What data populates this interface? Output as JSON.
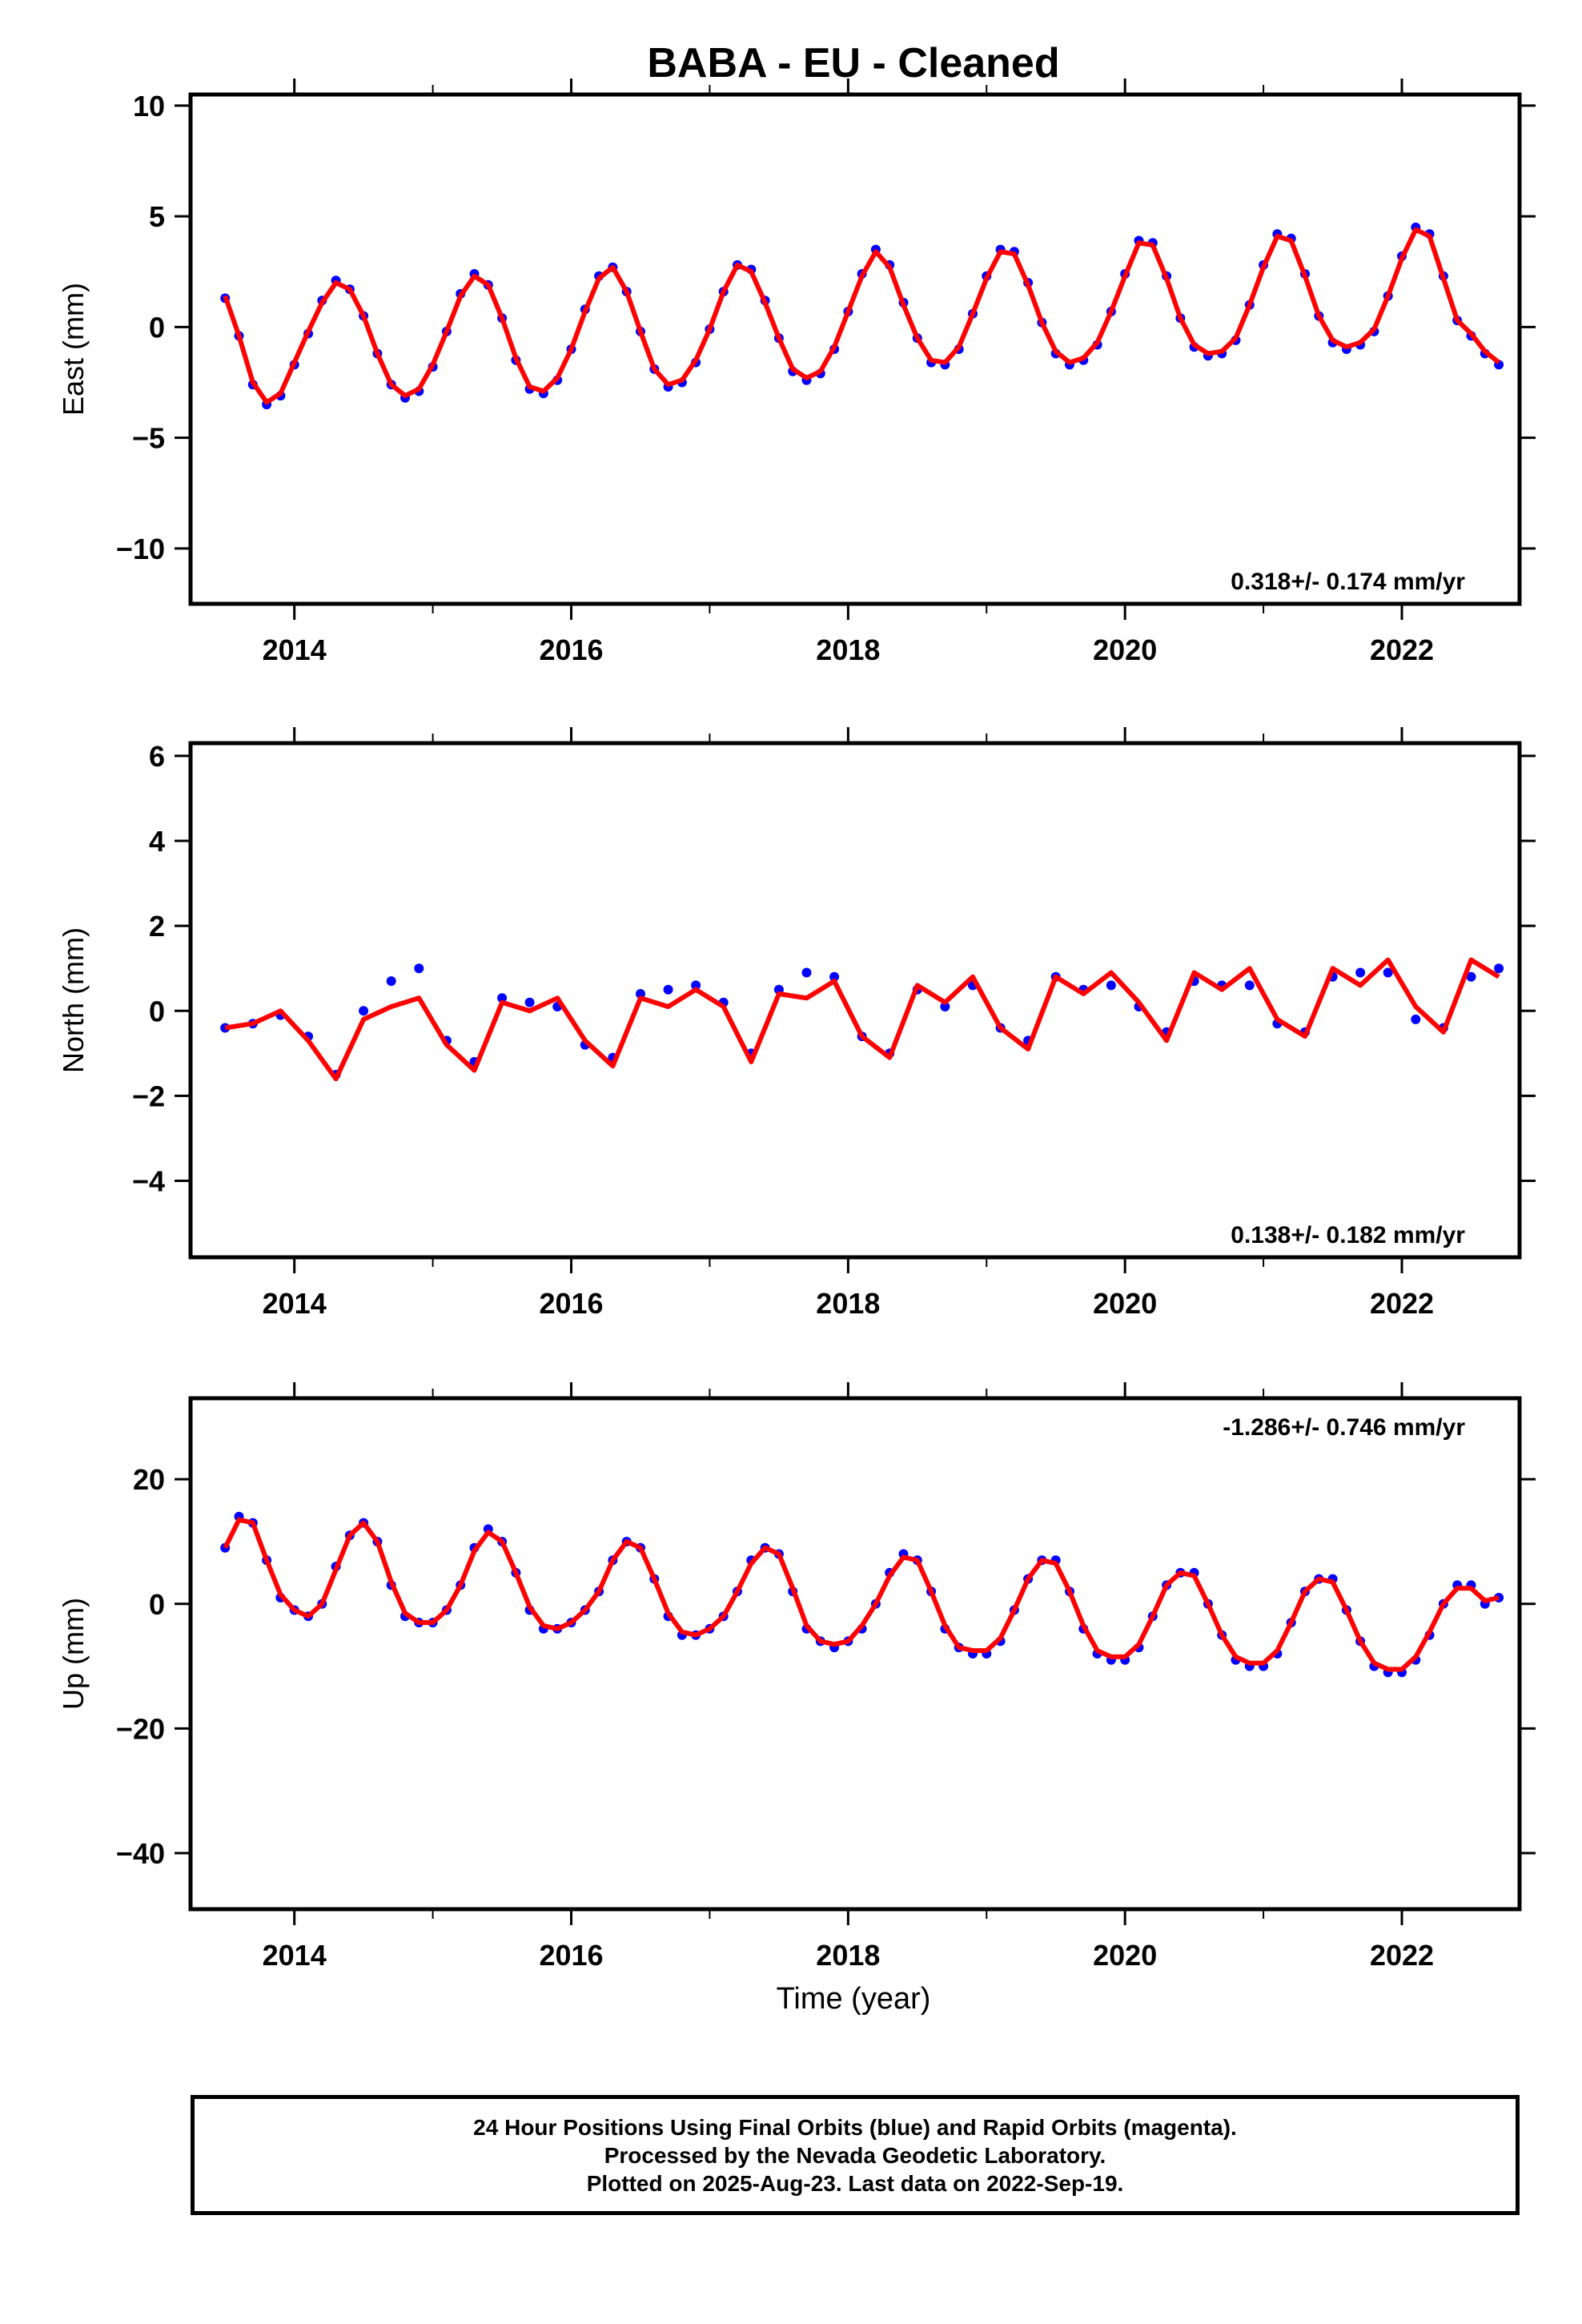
{
  "title": "BABA  - EU - Cleaned",
  "xlabel": "Time (year)",
  "colors": {
    "points": "#0000ff",
    "model": "#ff0000",
    "axes": "#000000"
  },
  "caption": [
    "24 Hour Positions Using Final Orbits (blue) and Rapid Orbits (magenta).",
    "Processed by the Nevada Geodetic Laboratory.",
    "Plotted on 2025-Aug-23. Last data on 2022-Sep-19."
  ],
  "chart_data": [
    {
      "type": "scatter",
      "ylabel": "East (mm)",
      "rate_label": "0.318+/- 0.174 mm/yr",
      "xlim": [
        2013.25,
        2022.85
      ],
      "ylim": [
        -12.5,
        10.5
      ],
      "xticks": [
        2014,
        2016,
        2018,
        2020,
        2022
      ],
      "yticks": [
        -10,
        -5,
        0,
        5,
        10
      ],
      "series": [
        {
          "kind": "daily-positions",
          "x": [
            2013.5,
            2013.6,
            2013.7,
            2013.8,
            2013.9,
            2014.0,
            2014.1,
            2014.2,
            2014.3,
            2014.4,
            2014.5,
            2014.6,
            2014.7,
            2014.8,
            2014.9,
            2015.0,
            2015.1,
            2015.2,
            2015.3,
            2015.4,
            2015.5,
            2015.6,
            2015.7,
            2015.8,
            2015.9,
            2016.0,
            2016.1,
            2016.2,
            2016.3,
            2016.4,
            2016.5,
            2016.6,
            2016.7,
            2016.8,
            2016.9,
            2017.0,
            2017.1,
            2017.2,
            2017.3,
            2017.4,
            2017.5,
            2017.6,
            2017.7,
            2017.8,
            2017.9,
            2018.0,
            2018.1,
            2018.2,
            2018.3,
            2018.4,
            2018.5,
            2018.6,
            2018.7,
            2018.8,
            2018.9,
            2019.0,
            2019.1,
            2019.2,
            2019.3,
            2019.4,
            2019.5,
            2019.6,
            2019.7,
            2019.8,
            2019.9,
            2020.0,
            2020.1,
            2020.2,
            2020.3,
            2020.4,
            2020.5,
            2020.6,
            2020.7,
            2020.8,
            2020.9,
            2021.0,
            2021.1,
            2021.2,
            2021.3,
            2021.4,
            2021.5,
            2021.6,
            2021.7,
            2021.8,
            2021.9,
            2022.0,
            2022.1,
            2022.2,
            2022.3,
            2022.4,
            2022.5,
            2022.6,
            2022.7
          ],
          "y": [
            1.3,
            -0.4,
            -2.6,
            -3.5,
            -3.1,
            -1.7,
            -0.3,
            1.2,
            2.1,
            1.7,
            0.5,
            -1.2,
            -2.6,
            -3.2,
            -2.9,
            -1.8,
            -0.2,
            1.5,
            2.4,
            1.9,
            0.4,
            -1.5,
            -2.8,
            -3.0,
            -2.4,
            -1.0,
            0.8,
            2.3,
            2.7,
            1.6,
            -0.2,
            -1.9,
            -2.7,
            -2.5,
            -1.6,
            -0.1,
            1.6,
            2.8,
            2.6,
            1.2,
            -0.5,
            -2.0,
            -2.4,
            -2.1,
            -1.0,
            0.7,
            2.4,
            3.5,
            2.8,
            1.1,
            -0.5,
            -1.6,
            -1.7,
            -1.0,
            0.6,
            2.3,
            3.5,
            3.4,
            2.0,
            0.2,
            -1.2,
            -1.7,
            -1.5,
            -0.8,
            0.7,
            2.4,
            3.9,
            3.8,
            2.3,
            0.4,
            -0.9,
            -1.3,
            -1.2,
            -0.6,
            1.0,
            2.8,
            4.2,
            4.0,
            2.4,
            0.5,
            -0.7,
            -1.0,
            -0.8,
            -0.2,
            1.4,
            3.2,
            4.5,
            4.2,
            2.3,
            0.3,
            -0.4,
            -1.2,
            -1.7
          ]
        },
        {
          "kind": "model-fit",
          "x": [
            2013.5,
            2013.6,
            2013.7,
            2013.8,
            2013.9,
            2014.0,
            2014.1,
            2014.2,
            2014.3,
            2014.4,
            2014.5,
            2014.6,
            2014.7,
            2014.8,
            2014.9,
            2015.0,
            2015.1,
            2015.2,
            2015.3,
            2015.4,
            2015.5,
            2015.6,
            2015.7,
            2015.8,
            2015.9,
            2016.0,
            2016.1,
            2016.2,
            2016.3,
            2016.4,
            2016.5,
            2016.6,
            2016.7,
            2016.8,
            2016.9,
            2017.0,
            2017.1,
            2017.2,
            2017.3,
            2017.4,
            2017.5,
            2017.6,
            2017.7,
            2017.8,
            2017.9,
            2018.0,
            2018.1,
            2018.2,
            2018.3,
            2018.4,
            2018.5,
            2018.6,
            2018.7,
            2018.8,
            2018.9,
            2019.0,
            2019.1,
            2019.2,
            2019.3,
            2019.4,
            2019.5,
            2019.6,
            2019.7,
            2019.8,
            2019.9,
            2020.0,
            2020.1,
            2020.2,
            2020.3,
            2020.4,
            2020.5,
            2020.6,
            2020.7,
            2020.8,
            2020.9,
            2021.0,
            2021.1,
            2021.2,
            2021.3,
            2021.4,
            2021.5,
            2021.6,
            2021.7,
            2021.8,
            2021.9,
            2022.0,
            2022.1,
            2022.2,
            2022.3,
            2022.4,
            2022.5,
            2022.6,
            2022.7
          ],
          "y": [
            1.4,
            -0.4,
            -2.5,
            -3.4,
            -3.0,
            -1.6,
            -0.2,
            1.1,
            2.0,
            1.7,
            0.5,
            -1.2,
            -2.6,
            -3.1,
            -2.8,
            -1.7,
            -0.2,
            1.4,
            2.3,
            1.9,
            0.4,
            -1.4,
            -2.7,
            -2.9,
            -2.3,
            -1.0,
            0.7,
            2.2,
            2.7,
            1.6,
            -0.2,
            -1.9,
            -2.6,
            -2.4,
            -1.5,
            -0.1,
            1.6,
            2.8,
            2.5,
            1.1,
            -0.5,
            -1.9,
            -2.3,
            -2.0,
            -0.9,
            0.7,
            2.3,
            3.4,
            2.7,
            1.0,
            -0.5,
            -1.5,
            -1.6,
            -0.9,
            0.6,
            2.2,
            3.4,
            3.3,
            1.9,
            0.2,
            -1.1,
            -1.6,
            -1.4,
            -0.7,
            0.7,
            2.3,
            3.8,
            3.7,
            2.2,
            0.4,
            -0.8,
            -1.2,
            -1.1,
            -0.5,
            1.0,
            2.7,
            4.1,
            3.9,
            2.3,
            0.5,
            -0.6,
            -0.9,
            -0.7,
            -0.1,
            1.4,
            3.1,
            4.4,
            4.1,
            2.2,
            0.3,
            -0.3,
            -1.1,
            -1.6
          ]
        }
      ]
    },
    {
      "type": "scatter",
      "ylabel": "North (mm)",
      "rate_label": "0.138+/- 0.182 mm/yr",
      "xlim": [
        2013.25,
        2022.85
      ],
      "ylim": [
        -5.8,
        6.3
      ],
      "xticks": [
        2014,
        2016,
        2018,
        2020,
        2022
      ],
      "yticks": [
        -4,
        -2,
        0,
        2,
        4,
        6
      ],
      "series": [
        {
          "kind": "daily-positions",
          "x": [
            2013.5,
            2013.7,
            2013.9,
            2014.1,
            2014.3,
            2014.5,
            2014.7,
            2014.9,
            2015.1,
            2015.3,
            2015.5,
            2015.7,
            2015.9,
            2016.1,
            2016.3,
            2016.5,
            2016.7,
            2016.9,
            2017.1,
            2017.3,
            2017.5,
            2017.7,
            2017.9,
            2018.1,
            2018.3,
            2018.5,
            2018.7,
            2018.9,
            2019.1,
            2019.3,
            2019.5,
            2019.7,
            2019.9,
            2020.1,
            2020.3,
            2020.5,
            2020.7,
            2020.9,
            2021.1,
            2021.3,
            2021.5,
            2021.7,
            2021.9,
            2022.1,
            2022.3,
            2022.5,
            2022.7
          ],
          "y": [
            -0.4,
            -0.3,
            -0.1,
            -0.6,
            -1.5,
            0.0,
            0.7,
            1.0,
            -0.7,
            -1.2,
            0.3,
            0.2,
            0.1,
            -0.8,
            -1.1,
            0.4,
            0.5,
            0.6,
            0.2,
            -1.0,
            0.5,
            0.9,
            0.8,
            -0.6,
            -1.0,
            0.5,
            0.1,
            0.6,
            -0.4,
            -0.7,
            0.8,
            0.5,
            0.6,
            0.1,
            -0.5,
            0.7,
            0.6,
            0.6,
            -0.3,
            -0.5,
            0.8,
            0.9,
            0.9,
            -0.2,
            -0.4,
            0.8,
            1.0
          ]
        },
        {
          "kind": "model-fit",
          "x": [
            2013.5,
            2013.7,
            2013.9,
            2014.1,
            2014.3,
            2014.5,
            2014.7,
            2014.9,
            2015.1,
            2015.3,
            2015.5,
            2015.7,
            2015.9,
            2016.1,
            2016.3,
            2016.5,
            2016.7,
            2016.9,
            2017.1,
            2017.3,
            2017.5,
            2017.7,
            2017.9,
            2018.1,
            2018.3,
            2018.5,
            2018.7,
            2018.9,
            2019.1,
            2019.3,
            2019.5,
            2019.7,
            2019.9,
            2020.1,
            2020.3,
            2020.5,
            2020.7,
            2020.9,
            2021.1,
            2021.3,
            2021.5,
            2021.7,
            2021.9,
            2022.1,
            2022.3,
            2022.5,
            2022.7
          ],
          "y": [
            -0.4,
            -0.3,
            0.0,
            -0.7,
            -1.6,
            -0.2,
            0.1,
            0.3,
            -0.8,
            -1.4,
            0.2,
            0.0,
            0.3,
            -0.7,
            -1.3,
            0.3,
            0.1,
            0.5,
            0.1,
            -1.2,
            0.4,
            0.3,
            0.7,
            -0.6,
            -1.1,
            0.6,
            0.2,
            0.8,
            -0.4,
            -0.9,
            0.8,
            0.4,
            0.9,
            0.2,
            -0.7,
            0.9,
            0.5,
            1.0,
            -0.2,
            -0.6,
            1.0,
            0.6,
            1.2,
            0.1,
            -0.5,
            1.2,
            0.8
          ]
        }
      ]
    },
    {
      "type": "scatter",
      "ylabel": "Up (mm)",
      "rate_label": "-1.286+/- 0.746 mm/yr",
      "xlim": [
        2013.25,
        2022.85
      ],
      "ylim": [
        -49,
        33
      ],
      "xticks": [
        2014,
        2016,
        2018,
        2020,
        2022
      ],
      "yticks": [
        -40,
        -20,
        0,
        20
      ],
      "series": [
        {
          "kind": "daily-positions",
          "x": [
            2013.5,
            2013.6,
            2013.7,
            2013.8,
            2013.9,
            2014.0,
            2014.1,
            2014.2,
            2014.3,
            2014.4,
            2014.5,
            2014.6,
            2014.7,
            2014.8,
            2014.9,
            2015.0,
            2015.1,
            2015.2,
            2015.3,
            2015.4,
            2015.5,
            2015.6,
            2015.7,
            2015.8,
            2015.9,
            2016.0,
            2016.1,
            2016.2,
            2016.3,
            2016.4,
            2016.5,
            2016.6,
            2016.7,
            2016.8,
            2016.9,
            2017.0,
            2017.1,
            2017.2,
            2017.3,
            2017.4,
            2017.5,
            2017.6,
            2017.7,
            2017.8,
            2017.9,
            2018.0,
            2018.1,
            2018.2,
            2018.3,
            2018.4,
            2018.5,
            2018.6,
            2018.7,
            2018.8,
            2018.9,
            2019.0,
            2019.1,
            2019.2,
            2019.3,
            2019.4,
            2019.5,
            2019.6,
            2019.7,
            2019.8,
            2019.9,
            2020.0,
            2020.1,
            2020.2,
            2020.3,
            2020.4,
            2020.5,
            2020.6,
            2020.7,
            2020.8,
            2020.9,
            2021.0,
            2021.1,
            2021.2,
            2021.3,
            2021.4,
            2021.5,
            2021.6,
            2021.7,
            2021.8,
            2021.9,
            2022.0,
            2022.1,
            2022.2,
            2022.3,
            2022.4,
            2022.5,
            2022.6,
            2022.7
          ],
          "y": [
            9,
            14,
            13,
            7,
            1,
            -1,
            -2,
            0,
            6,
            11,
            13,
            10,
            3,
            -2,
            -3,
            -3,
            -1,
            3,
            9,
            12,
            10,
            5,
            -1,
            -4,
            -4,
            -3,
            -1,
            2,
            7,
            10,
            9,
            4,
            -2,
            -5,
            -5,
            -4,
            -2,
            2,
            7,
            9,
            8,
            2,
            -4,
            -6,
            -7,
            -6,
            -4,
            0,
            5,
            8,
            7,
            2,
            -4,
            -7,
            -8,
            -8,
            -6,
            -1,
            4,
            7,
            7,
            2,
            -4,
            -8,
            -9,
            -9,
            -7,
            -2,
            3,
            5,
            5,
            0,
            -5,
            -9,
            -10,
            -10,
            -8,
            -3,
            2,
            4,
            4,
            -1,
            -6,
            -10,
            -11,
            -11,
            -9,
            -5,
            0,
            3,
            3,
            0,
            1
          ]
        },
        {
          "kind": "model-fit",
          "x": [
            2013.5,
            2013.6,
            2013.7,
            2013.8,
            2013.9,
            2014.0,
            2014.1,
            2014.2,
            2014.3,
            2014.4,
            2014.5,
            2014.6,
            2014.7,
            2014.8,
            2014.9,
            2015.0,
            2015.1,
            2015.2,
            2015.3,
            2015.4,
            2015.5,
            2015.6,
            2015.7,
            2015.8,
            2015.9,
            2016.0,
            2016.1,
            2016.2,
            2016.3,
            2016.4,
            2016.5,
            2016.6,
            2016.7,
            2016.8,
            2016.9,
            2017.0,
            2017.1,
            2017.2,
            2017.3,
            2017.4,
            2017.5,
            2017.6,
            2017.7,
            2017.8,
            2017.9,
            2018.0,
            2018.1,
            2018.2,
            2018.3,
            2018.4,
            2018.5,
            2018.6,
            2018.7,
            2018.8,
            2018.9,
            2019.0,
            2019.1,
            2019.2,
            2019.3,
            2019.4,
            2019.5,
            2019.6,
            2019.7,
            2019.8,
            2019.9,
            2020.0,
            2020.1,
            2020.2,
            2020.3,
            2020.4,
            2020.5,
            2020.6,
            2020.7,
            2020.8,
            2020.9,
            2021.0,
            2021.1,
            2021.2,
            2021.3,
            2021.4,
            2021.5,
            2021.6,
            2021.7,
            2021.8,
            2021.9,
            2022.0,
            2022.1,
            2022.2,
            2022.3,
            2022.4,
            2022.5,
            2022.6,
            2022.7
          ],
          "y": [
            9,
            13.5,
            13,
            7,
            1.5,
            -1,
            -2,
            0,
            5.5,
            11,
            13,
            10,
            3.5,
            -1.5,
            -3,
            -3,
            -1,
            3,
            8.5,
            11.5,
            10,
            5,
            -0.5,
            -3.5,
            -4,
            -3,
            -1,
            2,
            7,
            10,
            9,
            4,
            -1.5,
            -4.5,
            -5,
            -4,
            -2,
            2,
            6.5,
            9,
            8,
            2.5,
            -3.5,
            -6,
            -6.5,
            -6,
            -3.5,
            0,
            4.5,
            7.5,
            7,
            2,
            -3.5,
            -7,
            -7.5,
            -7.5,
            -5.5,
            -1,
            4,
            7,
            6.5,
            2,
            -3.5,
            -7.5,
            -8.5,
            -8.5,
            -6.5,
            -2,
            3,
            5,
            4.5,
            0,
            -5,
            -8.5,
            -9.5,
            -9.5,
            -7.5,
            -3,
            2,
            4,
            3.5,
            -1,
            -6,
            -9.5,
            -10.5,
            -10.5,
            -8.5,
            -4.5,
            0,
            2.5,
            2.5,
            0.5,
            1
          ]
        }
      ]
    }
  ]
}
